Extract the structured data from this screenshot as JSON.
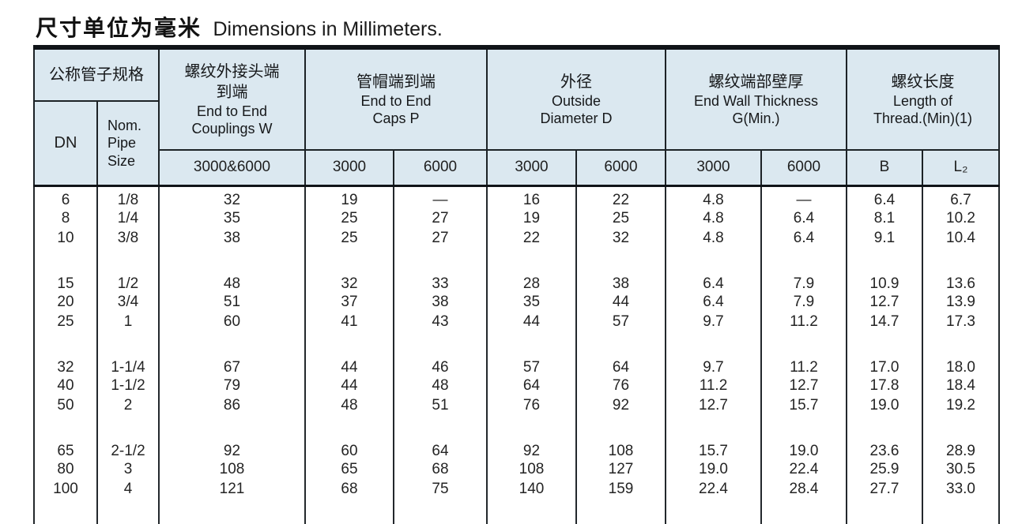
{
  "title": {
    "zh": "尺寸单位为毫米",
    "en": "Dimensions in Millimeters."
  },
  "colors": {
    "header_bg": "#dbe8f0",
    "grid_line": "#1c2226",
    "text": "#242424"
  },
  "table": {
    "header": {
      "nominal": {
        "zh": "公称管子规格",
        "dn": "DN",
        "pipe_size": "Nom. Pipe Size"
      },
      "couplings": {
        "zh": "螺纹外接头端到端",
        "en": "End to End Couplings W",
        "sub": "3000&6000"
      },
      "caps": {
        "zh": "管帽端到端",
        "en": "End to End Caps P",
        "sub_3000": "3000",
        "sub_6000": "6000"
      },
      "outside_diameter": {
        "zh": "外径",
        "en": "Outside Diameter D",
        "sub_3000": "3000",
        "sub_6000": "6000"
      },
      "end_wall": {
        "zh": "螺纹端部壁厚",
        "en": "End Wall Thickness G(Min.)",
        "sub_3000": "3000",
        "sub_6000": "6000"
      },
      "thread_length": {
        "zh": "螺纹长度",
        "en": "Length of Thread.(Min)(1)",
        "sub_b": "B",
        "sub_l2": "L₂"
      }
    },
    "columns": [
      "dn",
      "nom_pipe_size",
      "couplings_w",
      "caps_3000",
      "caps_6000",
      "od_3000",
      "od_6000",
      "wall_3000",
      "wall_6000",
      "thread_b",
      "thread_l2"
    ],
    "row_groups": [
      [
        [
          "6",
          "1/8",
          "32",
          "19",
          "—",
          "16",
          "22",
          "4.8",
          "—",
          "6.4",
          "6.7"
        ],
        [
          "8",
          "1/4",
          "35",
          "25",
          "27",
          "19",
          "25",
          "4.8",
          "6.4",
          "8.1",
          "10.2"
        ],
        [
          "10",
          "3/8",
          "38",
          "25",
          "27",
          "22",
          "32",
          "4.8",
          "6.4",
          "9.1",
          "10.4"
        ]
      ],
      [
        [
          "15",
          "1/2",
          "48",
          "32",
          "33",
          "28",
          "38",
          "6.4",
          "7.9",
          "10.9",
          "13.6"
        ],
        [
          "20",
          "3/4",
          "51",
          "37",
          "38",
          "35",
          "44",
          "6.4",
          "7.9",
          "12.7",
          "13.9"
        ],
        [
          "25",
          "1",
          "60",
          "41",
          "43",
          "44",
          "57",
          "9.7",
          "11.2",
          "14.7",
          "17.3"
        ]
      ],
      [
        [
          "32",
          "1-1/4",
          "67",
          "44",
          "46",
          "57",
          "64",
          "9.7",
          "11.2",
          "17.0",
          "18.0"
        ],
        [
          "40",
          "1-1/2",
          "79",
          "44",
          "48",
          "64",
          "76",
          "11.2",
          "12.7",
          "17.8",
          "18.4"
        ],
        [
          "50",
          "2",
          "86",
          "48",
          "51",
          "76",
          "92",
          "12.7",
          "15.7",
          "19.0",
          "19.2"
        ]
      ],
      [
        [
          "65",
          "2-1/2",
          "92",
          "60",
          "64",
          "92",
          "108",
          "15.7",
          "19.0",
          "23.6",
          "28.9"
        ],
        [
          "80",
          "3",
          "108",
          "65",
          "68",
          "108",
          "127",
          "19.0",
          "22.4",
          "25.9",
          "30.5"
        ],
        [
          "100",
          "4",
          "121",
          "68",
          "75",
          "140",
          "159",
          "22.4",
          "28.4",
          "27.7",
          "33.0"
        ]
      ]
    ]
  }
}
